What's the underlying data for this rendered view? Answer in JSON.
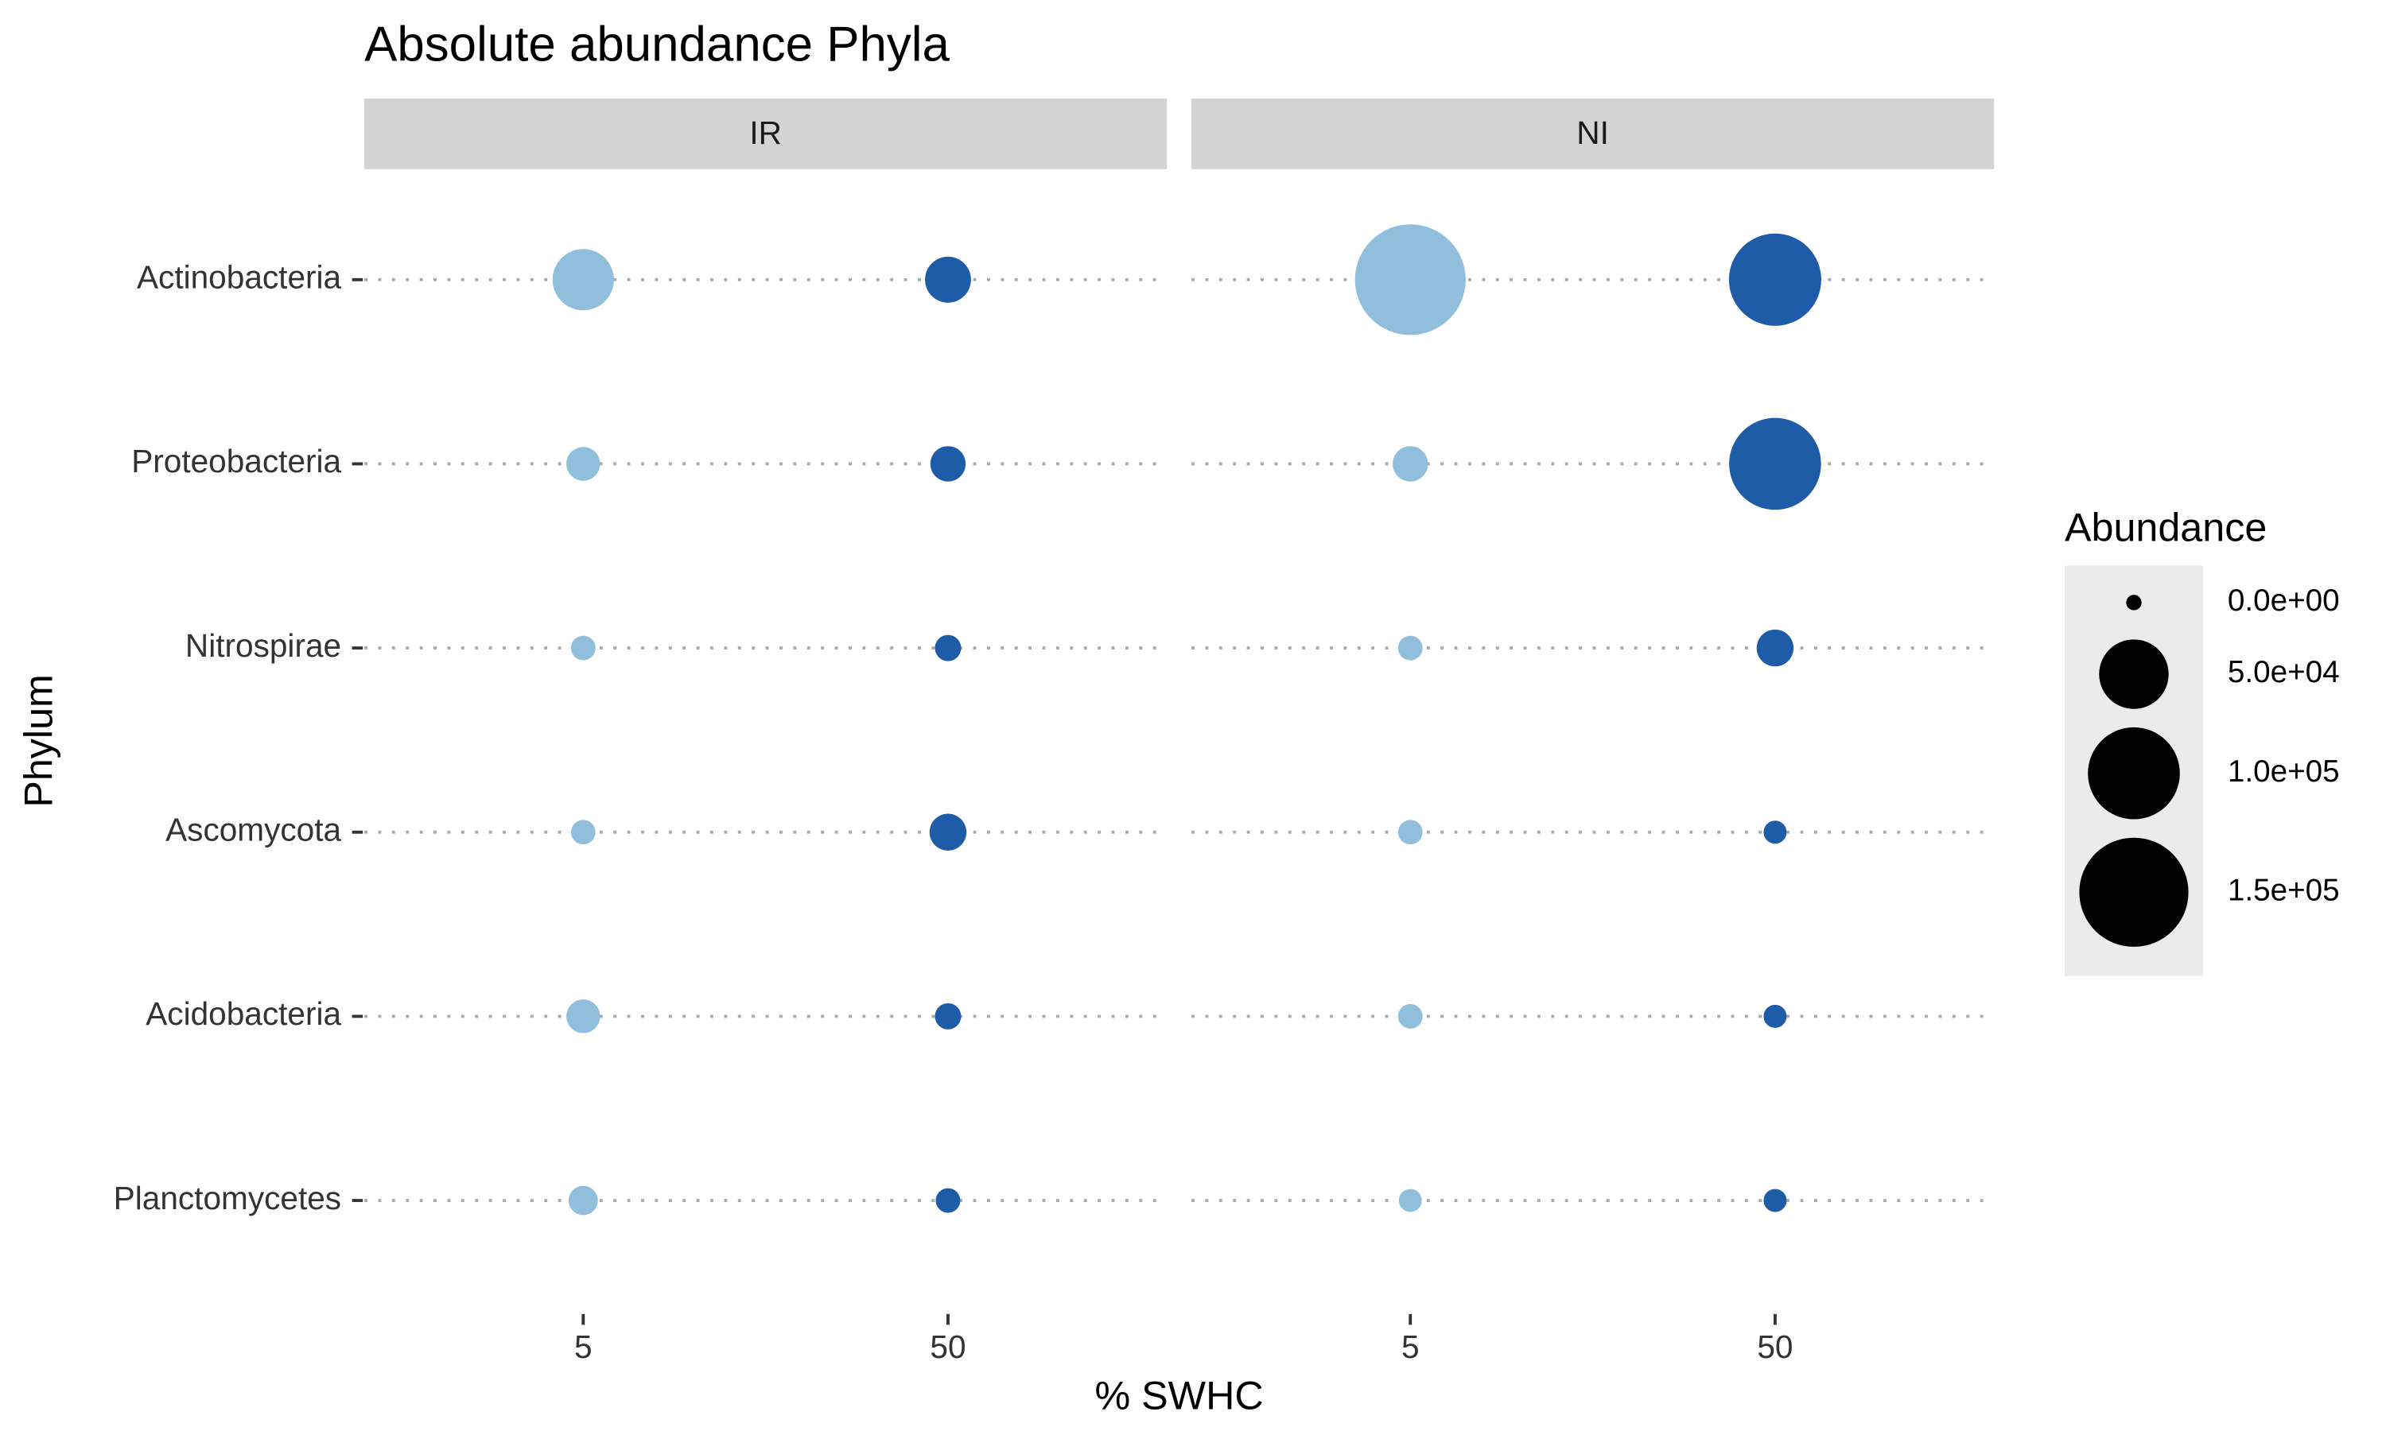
{
  "chart_data": {
    "type": "bubble",
    "title": "Absolute abundance Phyla",
    "x_label": "% SWHC",
    "y_label": "Phylum",
    "categories": [
      "Actinobacteria",
      "Proteobacteria",
      "Nitrospirae",
      "Ascomycota",
      "Acidobacteria",
      "Planctomycetes"
    ],
    "x_categories": [
      "5",
      "50"
    ],
    "colors": [
      "#91bfdb",
      "#1f5ca8"
    ],
    "facets": [
      {
        "label": "IR",
        "series": [
          {
            "values": [
              36000,
              5800,
              1450,
              1400,
              5800,
              3300
            ]
          },
          {
            "values": [
              16000,
              6800,
              2000,
              7900,
              2000,
              1450
            ]
          }
        ]
      },
      {
        "label": "NI",
        "series": [
          {
            "values": [
              155000,
              6800,
              1450,
              1400,
              1450,
              1000
            ]
          },
          {
            "values": [
              101000,
              100000,
              7900,
              1000,
              1000,
              1000
            ]
          }
        ]
      }
    ],
    "size_legend": {
      "title": "Abundance",
      "breaks": [
        {
          "value": 0,
          "label": "0.0e+00"
        },
        {
          "value": 50000,
          "label": "5.0e+04"
        },
        {
          "value": 100000,
          "label": "1.0e+05"
        },
        {
          "value": 150000,
          "label": "1.5e+05"
        }
      ]
    }
  }
}
